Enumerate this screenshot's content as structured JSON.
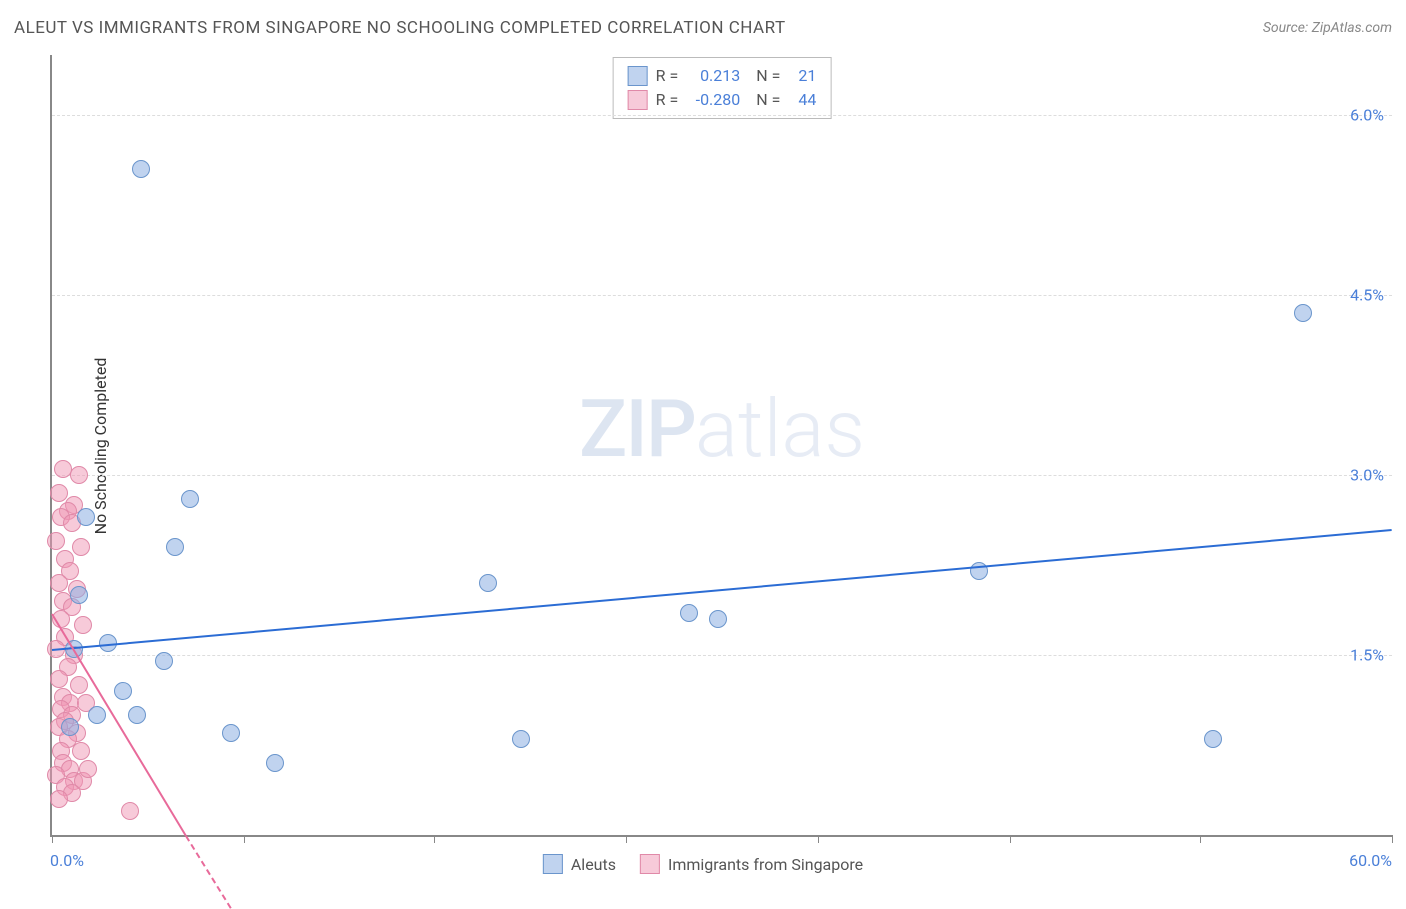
{
  "header": {
    "title": "ALEUT VS IMMIGRANTS FROM SINGAPORE NO SCHOOLING COMPLETED CORRELATION CHART",
    "source": "Source: ZipAtlas.com"
  },
  "watermark": {
    "zip": "ZIP",
    "atlas": "atlas"
  },
  "chart": {
    "type": "scatter",
    "background_color": "#ffffff",
    "grid_color": "#dddddd",
    "axis_color": "#888888",
    "xlim": [
      0,
      60
    ],
    "ylim": [
      0,
      6.5
    ],
    "x_ticks": [
      0,
      8.6,
      17.1,
      25.7,
      34.3,
      42.9,
      51.4,
      60
    ],
    "y_gridlines": [
      1.5,
      3.0,
      4.5,
      6.0
    ],
    "y_tick_labels": [
      "1.5%",
      "3.0%",
      "4.5%",
      "6.0%"
    ],
    "x_label_min": "0.0%",
    "x_label_max": "60.0%",
    "y_axis_title": "No Schooling Completed",
    "label_color": "#4a7fd8",
    "label_fontsize": 16,
    "series": {
      "aleuts": {
        "label": "Aleuts",
        "marker_fill": "rgba(140,175,225,0.55)",
        "marker_stroke": "#6a95cc",
        "marker_radius": 9,
        "trend_color": "#2b6cd4",
        "trend_width": 2,
        "trend": {
          "x1": 0,
          "y1": 1.55,
          "x2": 60,
          "y2": 2.55
        },
        "points": [
          [
            4.0,
            5.55
          ],
          [
            56.0,
            4.35
          ],
          [
            6.2,
            2.8
          ],
          [
            5.5,
            2.4
          ],
          [
            19.5,
            2.1
          ],
          [
            41.5,
            2.2
          ],
          [
            28.5,
            1.85
          ],
          [
            29.8,
            1.8
          ],
          [
            5.0,
            1.45
          ],
          [
            3.2,
            1.2
          ],
          [
            2.0,
            1.0
          ],
          [
            3.8,
            1.0
          ],
          [
            8.0,
            0.85
          ],
          [
            21.0,
            0.8
          ],
          [
            10.0,
            0.6
          ],
          [
            52.0,
            0.8
          ],
          [
            1.0,
            1.55
          ],
          [
            1.5,
            2.65
          ],
          [
            1.2,
            2.0
          ],
          [
            0.8,
            0.9
          ],
          [
            2.5,
            1.6
          ]
        ]
      },
      "singapore": {
        "label": "Immigrants from Singapore",
        "marker_fill": "rgba(240,150,180,0.5)",
        "marker_stroke": "#e089a8",
        "marker_radius": 9,
        "trend_color": "#e86a9a",
        "trend_width": 2,
        "trend": {
          "x1": 0,
          "y1": 1.85,
          "x2": 6.0,
          "y2": 0.0
        },
        "points": [
          [
            0.5,
            3.05
          ],
          [
            1.2,
            3.0
          ],
          [
            0.3,
            2.85
          ],
          [
            1.0,
            2.75
          ],
          [
            0.7,
            2.7
          ],
          [
            0.4,
            2.65
          ],
          [
            0.9,
            2.6
          ],
          [
            0.2,
            2.45
          ],
          [
            1.3,
            2.4
          ],
          [
            0.6,
            2.3
          ],
          [
            0.8,
            2.2
          ],
          [
            0.3,
            2.1
          ],
          [
            1.1,
            2.05
          ],
          [
            0.5,
            1.95
          ],
          [
            0.9,
            1.9
          ],
          [
            0.4,
            1.8
          ],
          [
            1.4,
            1.75
          ],
          [
            0.6,
            1.65
          ],
          [
            0.2,
            1.55
          ],
          [
            1.0,
            1.5
          ],
          [
            0.7,
            1.4
          ],
          [
            0.3,
            1.3
          ],
          [
            1.2,
            1.25
          ],
          [
            0.5,
            1.15
          ],
          [
            0.8,
            1.1
          ],
          [
            0.4,
            1.05
          ],
          [
            1.5,
            1.1
          ],
          [
            0.9,
            1.0
          ],
          [
            0.6,
            0.95
          ],
          [
            0.3,
            0.9
          ],
          [
            1.1,
            0.85
          ],
          [
            0.7,
            0.8
          ],
          [
            0.4,
            0.7
          ],
          [
            1.3,
            0.7
          ],
          [
            0.5,
            0.6
          ],
          [
            0.8,
            0.55
          ],
          [
            0.2,
            0.5
          ],
          [
            1.0,
            0.45
          ],
          [
            0.6,
            0.4
          ],
          [
            1.4,
            0.45
          ],
          [
            0.9,
            0.35
          ],
          [
            0.3,
            0.3
          ],
          [
            1.6,
            0.55
          ],
          [
            3.5,
            0.2
          ]
        ]
      }
    },
    "stats": {
      "rows": [
        {
          "swatch_fill": "rgba(140,175,225,0.55)",
          "swatch_stroke": "#6a95cc",
          "r_label": "R =",
          "r_value": "0.213",
          "n_label": "N =",
          "n_value": "21"
        },
        {
          "swatch_fill": "rgba(240,150,180,0.5)",
          "swatch_stroke": "#e089a8",
          "r_label": "R =",
          "r_value": "-0.280",
          "n_label": "N =",
          "n_value": "44"
        }
      ]
    },
    "bottom_legend": [
      {
        "swatch_fill": "rgba(140,175,225,0.55)",
        "swatch_stroke": "#6a95cc",
        "label": "Aleuts"
      },
      {
        "swatch_fill": "rgba(240,150,180,0.5)",
        "swatch_stroke": "#e089a8",
        "label": "Immigrants from Singapore"
      }
    ]
  }
}
